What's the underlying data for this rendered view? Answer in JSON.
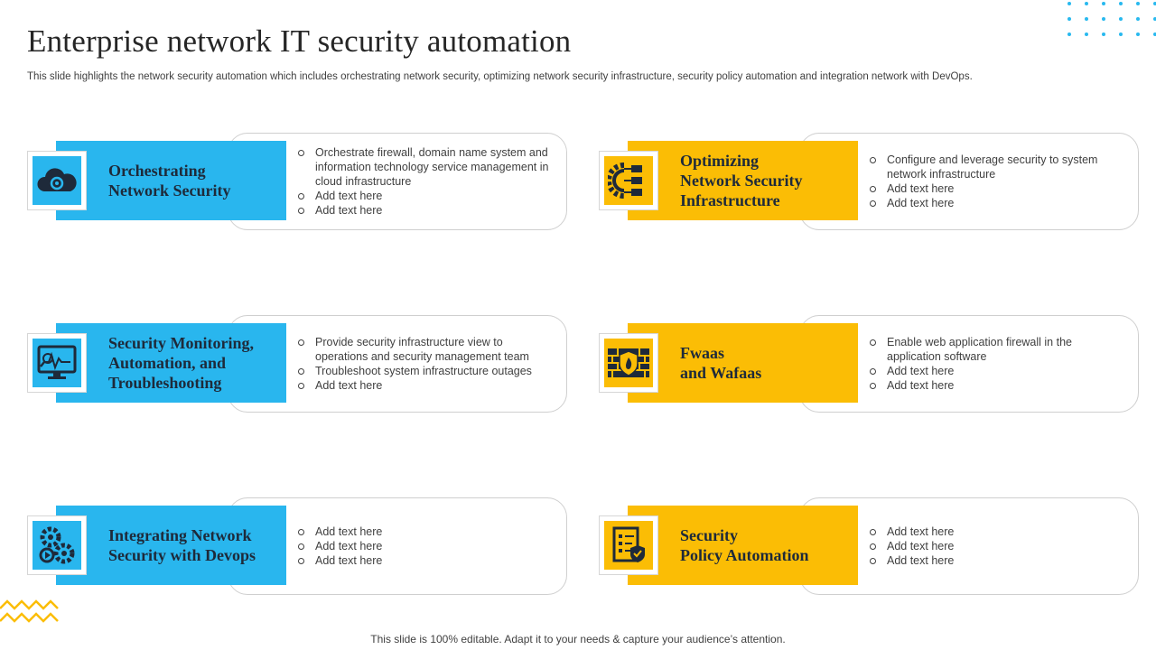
{
  "title": "Enterprise network IT security automation",
  "subtitle": "This slide highlights the network security automation which includes orchestrating network security, optimizing network security infrastructure, security policy automation and integration network with DevOps.",
  "footer": "This slide is 100% editable. Adapt it to your needs & capture your audience’s attention.",
  "colors": {
    "blue": "#29b6ee",
    "yellow": "#fbbd05",
    "dark": "#1e2a3a"
  },
  "cards": [
    {
      "icon": "cloud-gear-icon",
      "color": "blue",
      "heading": [
        "Orchestrating",
        "Network Security"
      ],
      "bullets": [
        "Orchestrate firewall, domain name system and information technology service management in cloud infrastructure",
        "Add text here",
        "Add text here"
      ]
    },
    {
      "icon": "gear-server-icon",
      "color": "yellow",
      "heading": [
        "Optimizing",
        "Network Security",
        "Infrastructure"
      ],
      "bullets": [
        "Configure and leverage security to system network infrastructure",
        "Add text here",
        "Add text here"
      ]
    },
    {
      "icon": "monitor-search-icon",
      "color": "blue",
      "heading": [
        "Security Monitoring,",
        "Automation, and",
        "Troubleshooting"
      ],
      "bullets": [
        "Provide security infrastructure view to operations and security management team",
        "Troubleshoot system infrastructure outages",
        "Add text here"
      ]
    },
    {
      "icon": "firewall-shield-icon",
      "color": "yellow",
      "heading": [
        "Fwaas",
        "and Wafaas"
      ],
      "bullets": [
        "Enable web application firewall in the application software",
        "Add text here",
        "Add text here"
      ]
    },
    {
      "icon": "gears-play-icon",
      "color": "blue",
      "heading": [
        "Integrating Network",
        "Security with Devops"
      ],
      "bullets": [
        "Add text here",
        "Add text here",
        "Add text here"
      ]
    },
    {
      "icon": "checklist-shield-icon",
      "color": "yellow",
      "heading": [
        "Security",
        "Policy Automation"
      ],
      "bullets": [
        "Add text here",
        "Add text here",
        "Add text here"
      ]
    }
  ]
}
